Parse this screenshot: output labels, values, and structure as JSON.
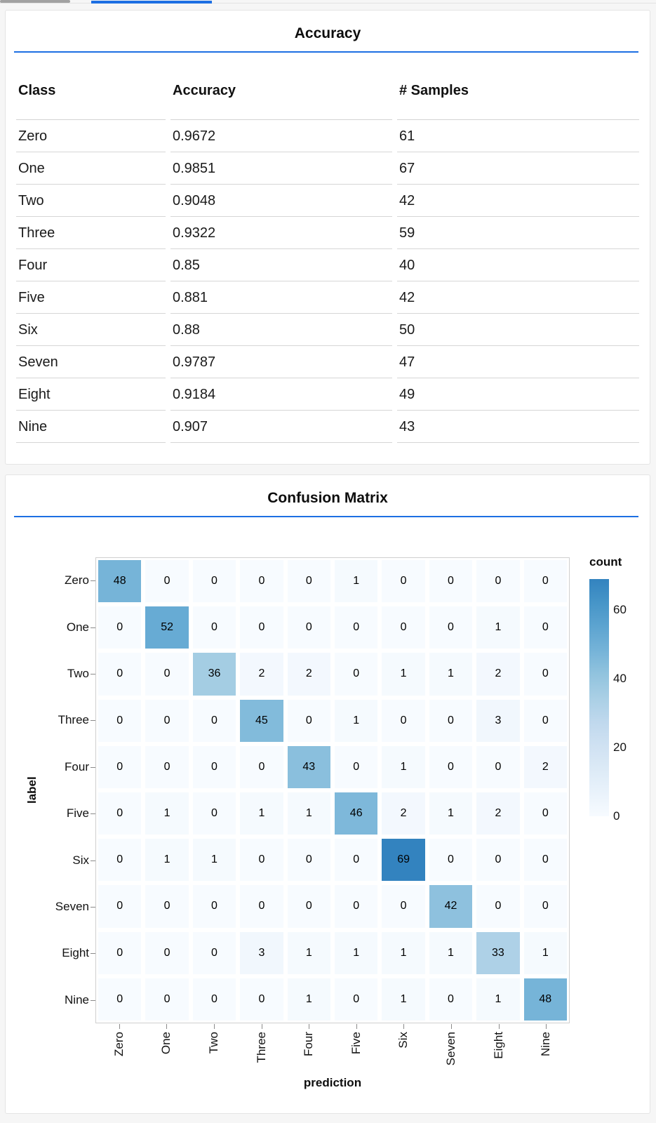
{
  "page": {
    "background": "#f6f6f6",
    "card_background": "#ffffff",
    "accent_color": "#1d6fe3"
  },
  "top_bar": {
    "scroll_thumb_color": "#a2a2a2",
    "active_tab_indicator_color": "#1d6fe3"
  },
  "chart_data": [
    {
      "type": "table",
      "title": "Accuracy",
      "columns": [
        "Class",
        "Accuracy",
        "# Samples"
      ],
      "rows": [
        [
          "Zero",
          "0.9672",
          "61"
        ],
        [
          "One",
          "0.9851",
          "67"
        ],
        [
          "Two",
          "0.9048",
          "42"
        ],
        [
          "Three",
          "0.9322",
          "59"
        ],
        [
          "Four",
          "0.85",
          "40"
        ],
        [
          "Five",
          "0.881",
          "42"
        ],
        [
          "Six",
          "0.88",
          "50"
        ],
        [
          "Seven",
          "0.9787",
          "47"
        ],
        [
          "Eight",
          "0.9184",
          "49"
        ],
        [
          "Nine",
          "0.907",
          "43"
        ]
      ]
    },
    {
      "type": "heatmap",
      "title": "Confusion Matrix",
      "xlabel": "prediction",
      "ylabel": "label",
      "x_categories": [
        "Zero",
        "One",
        "Two",
        "Three",
        "Four",
        "Five",
        "Six",
        "Seven",
        "Eight",
        "Nine"
      ],
      "y_categories": [
        "Zero",
        "One",
        "Two",
        "Three",
        "Four",
        "Five",
        "Six",
        "Seven",
        "Eight",
        "Nine"
      ],
      "matrix": [
        [
          48,
          0,
          0,
          0,
          0,
          1,
          0,
          0,
          0,
          0
        ],
        [
          0,
          52,
          0,
          0,
          0,
          0,
          0,
          0,
          1,
          0
        ],
        [
          0,
          0,
          36,
          2,
          2,
          0,
          1,
          1,
          2,
          0
        ],
        [
          0,
          0,
          0,
          45,
          0,
          1,
          0,
          0,
          3,
          0
        ],
        [
          0,
          0,
          0,
          0,
          43,
          0,
          1,
          0,
          0,
          2
        ],
        [
          0,
          1,
          0,
          1,
          1,
          46,
          2,
          1,
          2,
          0
        ],
        [
          0,
          1,
          1,
          0,
          0,
          0,
          69,
          0,
          0,
          0
        ],
        [
          0,
          0,
          0,
          0,
          0,
          0,
          0,
          42,
          0,
          0
        ],
        [
          0,
          0,
          0,
          3,
          1,
          1,
          1,
          1,
          33,
          1
        ],
        [
          0,
          0,
          0,
          0,
          1,
          0,
          1,
          0,
          1,
          48
        ]
      ],
      "legend_title": "count",
      "legend_ticks": [
        60,
        40,
        20,
        0
      ],
      "color_domain": [
        0,
        69
      ],
      "color_scheme": "blues",
      "grid": false,
      "legend_position": "right"
    }
  ]
}
